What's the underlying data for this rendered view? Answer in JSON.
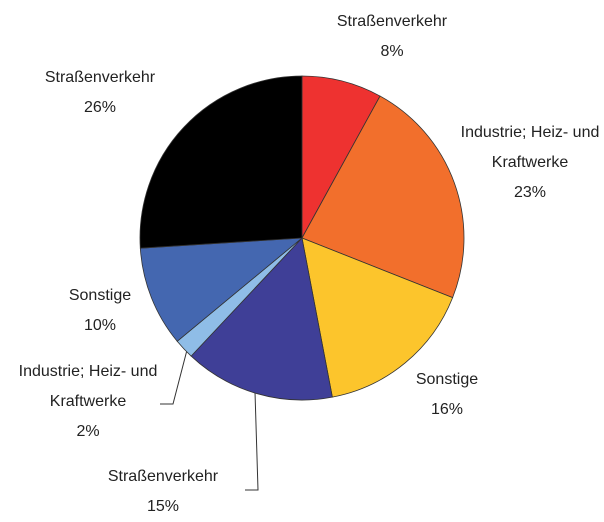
{
  "chart_data": {
    "type": "pie",
    "categories": [
      "Straßenverkehr",
      "Industrie; Heiz- und Kraftwerke",
      "Sonstige",
      "Straßenverkehr",
      "Industrie; Heiz- und Kraftwerke",
      "Sonstige",
      "Straßenverkehr"
    ],
    "values": [
      8,
      23,
      16,
      15,
      2,
      10,
      26
    ],
    "value_labels": [
      "8%",
      "23%",
      "16%",
      "15%",
      "2%",
      "10%",
      "26%"
    ],
    "colors": [
      "#ee3230",
      "#f26f2c",
      "#fcc52c",
      "#3f3f97",
      "#8fbde7",
      "#4467b0",
      "#000000"
    ]
  }
}
